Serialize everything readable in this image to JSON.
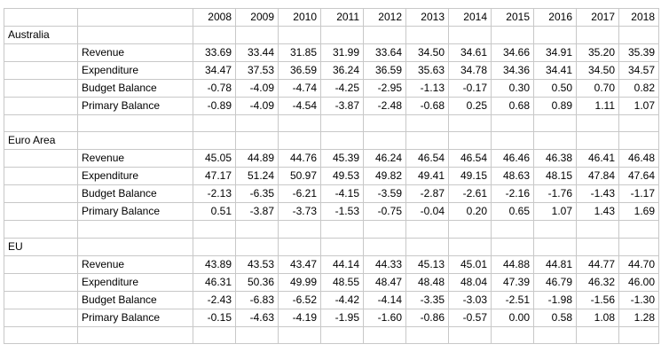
{
  "years": [
    "2008",
    "2009",
    "2010",
    "2011",
    "2012",
    "2013",
    "2014",
    "2015",
    "2016",
    "2017",
    "2018"
  ],
  "sections": [
    {
      "region": "Australia",
      "rows": [
        {
          "label": "Revenue",
          "values": [
            "33.69",
            "33.44",
            "31.85",
            "31.99",
            "33.64",
            "34.50",
            "34.61",
            "34.66",
            "34.91",
            "35.20",
            "35.39"
          ]
        },
        {
          "label": "Expenditure",
          "values": [
            "34.47",
            "37.53",
            "36.59",
            "36.24",
            "36.59",
            "35.63",
            "34.78",
            "34.36",
            "34.41",
            "34.50",
            "34.57"
          ]
        },
        {
          "label": "Budget Balance",
          "values": [
            "-0.78",
            "-4.09",
            "-4.74",
            "-4.25",
            "-2.95",
            "-1.13",
            "-0.17",
            "0.30",
            "0.50",
            "0.70",
            "0.82"
          ]
        },
        {
          "label": "Primary Balance",
          "values": [
            "-0.89",
            "-4.09",
            "-4.54",
            "-3.87",
            "-2.48",
            "-0.68",
            "0.25",
            "0.68",
            "0.89",
            "1.11",
            "1.07"
          ]
        }
      ]
    },
    {
      "region": "Euro Area",
      "rows": [
        {
          "label": "Revenue",
          "values": [
            "45.05",
            "44.89",
            "44.76",
            "45.39",
            "46.24",
            "46.54",
            "46.54",
            "46.46",
            "46.38",
            "46.41",
            "46.48"
          ]
        },
        {
          "label": "Expenditure",
          "values": [
            "47.17",
            "51.24",
            "50.97",
            "49.53",
            "49.82",
            "49.41",
            "49.15",
            "48.63",
            "48.15",
            "47.84",
            "47.64"
          ]
        },
        {
          "label": "Budget Balance",
          "values": [
            "-2.13",
            "-6.35",
            "-6.21",
            "-4.15",
            "-3.59",
            "-2.87",
            "-2.61",
            "-2.16",
            "-1.76",
            "-1.43",
            "-1.17"
          ]
        },
        {
          "label": "Primary Balance",
          "values": [
            "0.51",
            "-3.87",
            "-3.73",
            "-1.53",
            "-0.75",
            "-0.04",
            "0.20",
            "0.65",
            "1.07",
            "1.43",
            "1.69"
          ]
        }
      ]
    },
    {
      "region": "EU",
      "rows": [
        {
          "label": "Revenue",
          "values": [
            "43.89",
            "43.53",
            "43.47",
            "44.14",
            "44.33",
            "45.13",
            "45.01",
            "44.88",
            "44.81",
            "44.77",
            "44.70"
          ]
        },
        {
          "label": "Expenditure",
          "values": [
            "46.31",
            "50.36",
            "49.99",
            "48.55",
            "48.47",
            "48.48",
            "48.04",
            "47.39",
            "46.79",
            "46.32",
            "46.00"
          ]
        },
        {
          "label": "Budget Balance",
          "values": [
            "-2.43",
            "-6.83",
            "-6.52",
            "-4.42",
            "-4.14",
            "-3.35",
            "-3.03",
            "-2.51",
            "-1.98",
            "-1.56",
            "-1.30"
          ]
        },
        {
          "label": "Primary Balance",
          "values": [
            "-0.15",
            "-4.63",
            "-4.19",
            "-1.95",
            "-1.60",
            "-0.86",
            "-0.57",
            "0.00",
            "0.58",
            "1.08",
            "1.28"
          ]
        }
      ]
    }
  ]
}
